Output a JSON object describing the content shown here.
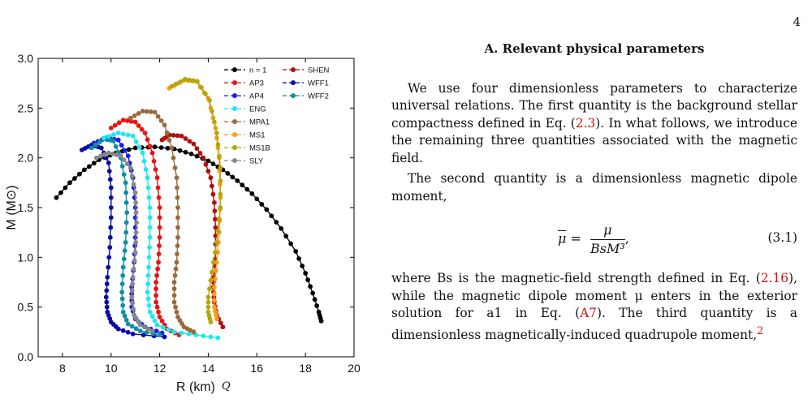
{
  "page": {
    "number": "4"
  },
  "section": {
    "title": "A.   Relevant physical parameters"
  },
  "text": {
    "p1": "We use four dimensionless parameters to characterize universal relations. The first quantity is the background stellar compactness defined in Eq. (",
    "p1_ref": "2.3",
    "p1_end": "). In what follows, we introduce the remaining three quantities associated with the magnetic field.",
    "p2": "The second quantity is a dimensionless magnetic dipole moment,",
    "eq_bar": "μ",
    "eq_eq": " = ",
    "eq_num": "μ",
    "eq_den": "BsM³",
    "eq_comma": ",",
    "eq_number": "(3.1)",
    "p3a": "where Bs is the magnetic-field strength defined in Eq. (",
    "p3_ref1": "2.16",
    "p3b": "), while the magnetic dipole moment μ enters in the exterior solution for a1 in Eq. (",
    "p3_ref2": "A7",
    "p3c": "). The third quantity is a dimensionless magnetically-induced quadrupole moment,",
    "p3_fn": "2",
    "partial": "Q"
  },
  "chart_data": {
    "type": "line",
    "xlabel": "R (km)",
    "ylabel": "M (M⊙)",
    "xlim": [
      7,
      20
    ],
    "ylim": [
      0,
      3.0
    ],
    "xticks": [
      8,
      10,
      12,
      14,
      16,
      18,
      20
    ],
    "yticks": [
      0.0,
      0.5,
      1.0,
      1.5,
      2.0,
      2.5,
      3.0
    ],
    "grid": false,
    "legend_position": "top-right",
    "series": [
      {
        "name": "n = 1",
        "color": "#000000",
        "points": [
          [
            7.75,
            1.6
          ],
          [
            8.3,
            1.75
          ],
          [
            8.9,
            1.88
          ],
          [
            9.5,
            1.98
          ],
          [
            10.2,
            2.05
          ],
          [
            11.0,
            2.1
          ],
          [
            11.8,
            2.11
          ],
          [
            12.6,
            2.09
          ],
          [
            13.3,
            2.04
          ],
          [
            14.0,
            1.97
          ],
          [
            14.6,
            1.88
          ],
          [
            15.2,
            1.77
          ],
          [
            15.8,
            1.64
          ],
          [
            16.4,
            1.48
          ],
          [
            17.0,
            1.29
          ],
          [
            17.6,
            1.06
          ],
          [
            18.0,
            0.84
          ],
          [
            18.3,
            0.64
          ],
          [
            18.55,
            0.45
          ],
          [
            18.65,
            0.36
          ]
        ]
      },
      {
        "name": "SHEN",
        "color": "#b01010",
        "points": [
          [
            12.1,
            2.18
          ],
          [
            12.4,
            2.23
          ],
          [
            12.9,
            2.22
          ],
          [
            13.4,
            2.14
          ],
          [
            13.8,
            2.0
          ],
          [
            14.1,
            1.8
          ],
          [
            14.25,
            1.55
          ],
          [
            14.3,
            1.3
          ],
          [
            14.3,
            1.05
          ],
          [
            14.25,
            0.85
          ],
          [
            14.2,
            0.7
          ],
          [
            14.25,
            0.55
          ],
          [
            14.35,
            0.42
          ],
          [
            14.6,
            0.3
          ]
        ]
      },
      {
        "name": "AP3",
        "color": "#ee1111",
        "points": [
          [
            10.0,
            2.3
          ],
          [
            10.5,
            2.38
          ],
          [
            11.0,
            2.36
          ],
          [
            11.4,
            2.25
          ],
          [
            11.7,
            2.05
          ],
          [
            11.9,
            1.8
          ],
          [
            12.0,
            1.5
          ],
          [
            12.0,
            1.2
          ],
          [
            11.95,
            0.95
          ],
          [
            11.85,
            0.75
          ],
          [
            11.85,
            0.55
          ],
          [
            12.0,
            0.4
          ],
          [
            12.3,
            0.28
          ],
          [
            12.8,
            0.22
          ]
        ]
      },
      {
        "name": "WFF1",
        "color": "#0a0aa6",
        "points": [
          [
            8.8,
            2.08
          ],
          [
            9.2,
            2.13
          ],
          [
            9.6,
            2.1
          ],
          [
            9.9,
            1.95
          ],
          [
            10.0,
            1.7
          ],
          [
            10.0,
            1.4
          ],
          [
            9.95,
            1.1
          ],
          [
            9.85,
            0.8
          ],
          [
            9.8,
            0.6
          ],
          [
            9.85,
            0.45
          ],
          [
            10.0,
            0.35
          ],
          [
            10.3,
            0.28
          ],
          [
            10.9,
            0.23
          ],
          [
            12.2,
            0.2
          ]
        ]
      },
      {
        "name": "AP4",
        "color": "#1a1aee",
        "points": [
          [
            9.3,
            2.15
          ],
          [
            9.8,
            2.2
          ],
          [
            10.3,
            2.18
          ],
          [
            10.7,
            2.02
          ],
          [
            10.9,
            1.8
          ],
          [
            11.0,
            1.5
          ],
          [
            11.0,
            1.2
          ],
          [
            10.95,
            0.95
          ],
          [
            10.85,
            0.7
          ],
          [
            10.85,
            0.5
          ],
          [
            11.0,
            0.38
          ],
          [
            11.4,
            0.3
          ],
          [
            12.1,
            0.24
          ]
        ]
      },
      {
        "name": "WFF2",
        "color": "#0f8fa0",
        "points": [
          [
            9.2,
            2.1
          ],
          [
            9.7,
            2.19
          ],
          [
            10.1,
            2.17
          ],
          [
            10.4,
            2.0
          ],
          [
            10.6,
            1.75
          ],
          [
            10.65,
            1.45
          ],
          [
            10.6,
            1.15
          ],
          [
            10.5,
            0.9
          ],
          [
            10.45,
            0.65
          ],
          [
            10.5,
            0.45
          ],
          [
            10.7,
            0.33
          ],
          [
            11.2,
            0.26
          ],
          [
            12.0,
            0.22
          ]
        ]
      },
      {
        "name": "ENG",
        "color": "#22e6f0",
        "points": [
          [
            9.7,
            2.2
          ],
          [
            10.3,
            2.25
          ],
          [
            10.9,
            2.22
          ],
          [
            11.3,
            2.05
          ],
          [
            11.5,
            1.8
          ],
          [
            11.6,
            1.5
          ],
          [
            11.6,
            1.2
          ],
          [
            11.55,
            0.9
          ],
          [
            11.5,
            0.65
          ],
          [
            11.6,
            0.45
          ],
          [
            11.9,
            0.32
          ],
          [
            12.6,
            0.25
          ],
          [
            13.5,
            0.22
          ],
          [
            14.4,
            0.19
          ]
        ]
      },
      {
        "name": "MPA1",
        "color": "#9a6a3a",
        "points": [
          [
            10.8,
            2.4
          ],
          [
            11.3,
            2.47
          ],
          [
            11.8,
            2.46
          ],
          [
            12.2,
            2.33
          ],
          [
            12.5,
            2.1
          ],
          [
            12.7,
            1.8
          ],
          [
            12.75,
            1.5
          ],
          [
            12.75,
            1.2
          ],
          [
            12.7,
            0.95
          ],
          [
            12.6,
            0.75
          ],
          [
            12.6,
            0.55
          ],
          [
            12.75,
            0.4
          ],
          [
            13.0,
            0.3
          ],
          [
            13.4,
            0.25
          ]
        ]
      },
      {
        "name": "MS1",
        "color": "#ff9a1a",
        "points": [
          [
            12.4,
            2.7
          ],
          [
            13.0,
            2.78
          ],
          [
            13.5,
            2.77
          ],
          [
            14.0,
            2.6
          ],
          [
            14.3,
            2.3
          ],
          [
            14.45,
            2.0
          ],
          [
            14.5,
            1.6
          ],
          [
            14.45,
            1.25
          ],
          [
            14.35,
            0.95
          ],
          [
            14.25,
            0.7
          ],
          [
            14.25,
            0.5
          ],
          [
            14.35,
            0.38
          ]
        ]
      },
      {
        "name": "MS1B",
        "color": "#b0a80c",
        "points": [
          [
            12.5,
            2.72
          ],
          [
            13.05,
            2.79
          ],
          [
            13.55,
            2.77
          ],
          [
            14.05,
            2.58
          ],
          [
            14.35,
            2.25
          ],
          [
            14.5,
            1.9
          ],
          [
            14.5,
            1.5
          ],
          [
            14.35,
            1.15
          ],
          [
            14.15,
            0.85
          ],
          [
            14.0,
            0.6
          ],
          [
            14.0,
            0.45
          ],
          [
            14.1,
            0.35
          ]
        ]
      },
      {
        "name": "SLY",
        "color": "#888888",
        "points": [
          [
            9.4,
            2.0
          ],
          [
            9.9,
            2.05
          ],
          [
            10.4,
            2.02
          ],
          [
            10.8,
            1.9
          ],
          [
            11.0,
            1.65
          ],
          [
            11.05,
            1.35
          ],
          [
            11.0,
            1.05
          ],
          [
            10.9,
            0.8
          ],
          [
            10.85,
            0.6
          ],
          [
            10.95,
            0.42
          ],
          [
            11.2,
            0.32
          ],
          [
            11.7,
            0.26
          ]
        ]
      }
    ]
  }
}
